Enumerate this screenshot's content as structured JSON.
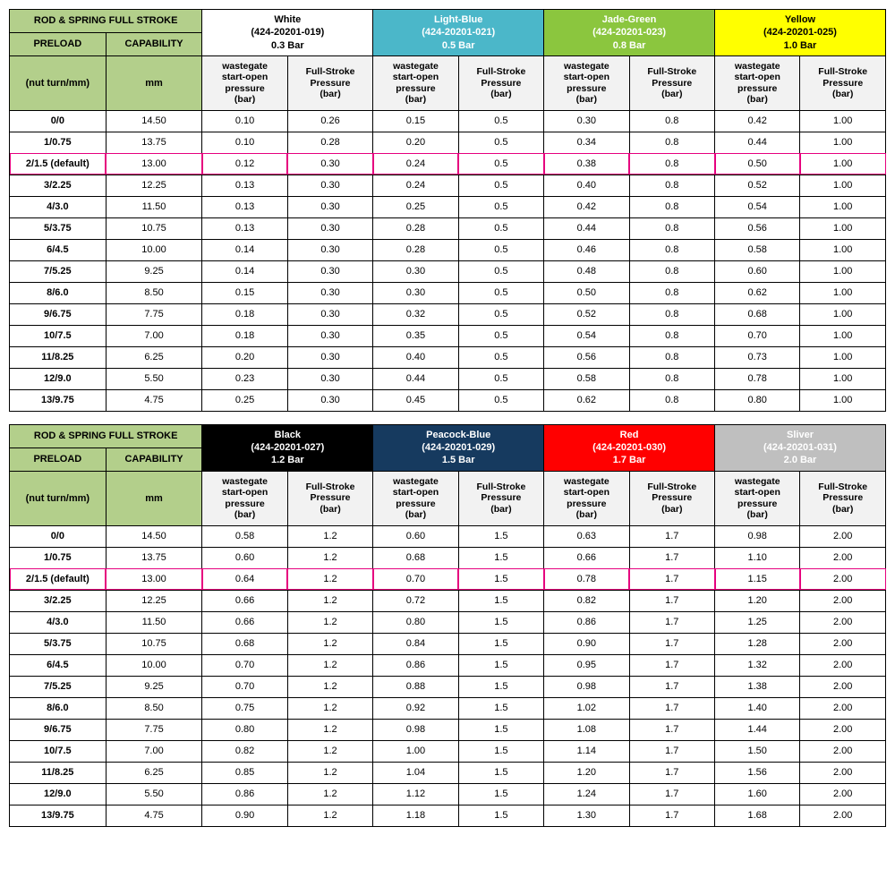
{
  "labels": {
    "title": "ROD & SPRING FULL STROKE",
    "preload": "PRELOAD",
    "capability": "CAPABILITY",
    "nutturn": "(nut turn/mm)",
    "mm": "mm",
    "wastegate": "wastegate start-open pressure (bar)",
    "fullstroke": "Full-Stroke Pressure (bar)"
  },
  "preloads": [
    "0/0",
    "1/0.75",
    "2/1.5 (default)",
    "3/2.25",
    "4/3.0",
    "5/3.75",
    "6/4.5",
    "7/5.25",
    "8/6.0",
    "9/6.75",
    "10/7.5",
    "11/8.25",
    "12/9.0",
    "13/9.75"
  ],
  "caps": [
    "14.50",
    "13.75",
    "13.00",
    "12.25",
    "11.50",
    "10.75",
    "10.00",
    "9.25",
    "8.50",
    "7.75",
    "7.00",
    "6.25",
    "5.50",
    "4.75"
  ],
  "highlight_index": 2,
  "tables": [
    {
      "springs": [
        {
          "name": "White",
          "part": "(424-20201-019)",
          "bar": "0.3 Bar",
          "bg": "#ffffff",
          "fg": "#000000"
        },
        {
          "name": "Light-Blue",
          "part": "(424-20201-021)",
          "bar": "0.5 Bar",
          "bg": "#4bb7c9",
          "fg": "#ffffff"
        },
        {
          "name": "Jade-Green",
          "part": "(424-20201-023)",
          "bar": "0.8 Bar",
          "bg": "#8bc63e",
          "fg": "#ffffff"
        },
        {
          "name": "Yellow",
          "part": "(424-20201-025)",
          "bar": "1.0 Bar",
          "bg": "#ffff00",
          "fg": "#000000"
        }
      ],
      "data": [
        [
          "0.10",
          "0.26",
          "0.15",
          "0.5",
          "0.30",
          "0.8",
          "0.42",
          "1.00"
        ],
        [
          "0.10",
          "0.28",
          "0.20",
          "0.5",
          "0.34",
          "0.8",
          "0.44",
          "1.00"
        ],
        [
          "0.12",
          "0.30",
          "0.24",
          "0.5",
          "0.38",
          "0.8",
          "0.50",
          "1.00"
        ],
        [
          "0.13",
          "0.30",
          "0.24",
          "0.5",
          "0.40",
          "0.8",
          "0.52",
          "1.00"
        ],
        [
          "0.13",
          "0.30",
          "0.25",
          "0.5",
          "0.42",
          "0.8",
          "0.54",
          "1.00"
        ],
        [
          "0.13",
          "0.30",
          "0.28",
          "0.5",
          "0.44",
          "0.8",
          "0.56",
          "1.00"
        ],
        [
          "0.14",
          "0.30",
          "0.28",
          "0.5",
          "0.46",
          "0.8",
          "0.58",
          "1.00"
        ],
        [
          "0.14",
          "0.30",
          "0.30",
          "0.5",
          "0.48",
          "0.8",
          "0.60",
          "1.00"
        ],
        [
          "0.15",
          "0.30",
          "0.30",
          "0.5",
          "0.50",
          "0.8",
          "0.62",
          "1.00"
        ],
        [
          "0.18",
          "0.30",
          "0.32",
          "0.5",
          "0.52",
          "0.8",
          "0.68",
          "1.00"
        ],
        [
          "0.18",
          "0.30",
          "0.35",
          "0.5",
          "0.54",
          "0.8",
          "0.70",
          "1.00"
        ],
        [
          "0.20",
          "0.30",
          "0.40",
          "0.5",
          "0.56",
          "0.8",
          "0.73",
          "1.00"
        ],
        [
          "0.23",
          "0.30",
          "0.44",
          "0.5",
          "0.58",
          "0.8",
          "0.78",
          "1.00"
        ],
        [
          "0.25",
          "0.30",
          "0.45",
          "0.5",
          "0.62",
          "0.8",
          "0.80",
          "1.00"
        ]
      ]
    },
    {
      "springs": [
        {
          "name": "Black",
          "part": "(424-20201-027)",
          "bar": "1.2 Bar",
          "bg": "#000000",
          "fg": "#ffffff"
        },
        {
          "name": "Peacock-Blue",
          "part": "(424-20201-029)",
          "bar": "1.5 Bar",
          "bg": "#163a5f",
          "fg": "#ffffff"
        },
        {
          "name": "Red",
          "part": "(424-20201-030)",
          "bar": "1.7 Bar",
          "bg": "#ff0000",
          "fg": "#ffffff"
        },
        {
          "name": "Sliver",
          "part": "(424-20201-031)",
          "bar": "2.0 Bar",
          "bg": "#bfbfbf",
          "fg": "#ffffff"
        }
      ],
      "data": [
        [
          "0.58",
          "1.2",
          "0.60",
          "1.5",
          "0.63",
          "1.7",
          "0.98",
          "2.00"
        ],
        [
          "0.60",
          "1.2",
          "0.68",
          "1.5",
          "0.66",
          "1.7",
          "1.10",
          "2.00"
        ],
        [
          "0.64",
          "1.2",
          "0.70",
          "1.5",
          "0.78",
          "1.7",
          "1.15",
          "2.00"
        ],
        [
          "0.66",
          "1.2",
          "0.72",
          "1.5",
          "0.82",
          "1.7",
          "1.20",
          "2.00"
        ],
        [
          "0.66",
          "1.2",
          "0.80",
          "1.5",
          "0.86",
          "1.7",
          "1.25",
          "2.00"
        ],
        [
          "0.68",
          "1.2",
          "0.84",
          "1.5",
          "0.90",
          "1.7",
          "1.28",
          "2.00"
        ],
        [
          "0.70",
          "1.2",
          "0.86",
          "1.5",
          "0.95",
          "1.7",
          "1.32",
          "2.00"
        ],
        [
          "0.70",
          "1.2",
          "0.88",
          "1.5",
          "0.98",
          "1.7",
          "1.38",
          "2.00"
        ],
        [
          "0.75",
          "1.2",
          "0.92",
          "1.5",
          "1.02",
          "1.7",
          "1.40",
          "2.00"
        ],
        [
          "0.80",
          "1.2",
          "0.98",
          "1.5",
          "1.08",
          "1.7",
          "1.44",
          "2.00"
        ],
        [
          "0.82",
          "1.2",
          "1.00",
          "1.5",
          "1.14",
          "1.7",
          "1.50",
          "2.00"
        ],
        [
          "0.85",
          "1.2",
          "1.04",
          "1.5",
          "1.20",
          "1.7",
          "1.56",
          "2.00"
        ],
        [
          "0.86",
          "1.2",
          "1.12",
          "1.5",
          "1.24",
          "1.7",
          "1.60",
          "2.00"
        ],
        [
          "0.90",
          "1.2",
          "1.18",
          "1.5",
          "1.30",
          "1.7",
          "1.68",
          "2.00"
        ]
      ]
    }
  ],
  "col_widths_pct": {
    "preload": "11%",
    "cap": "11%",
    "data": "9.75%"
  }
}
